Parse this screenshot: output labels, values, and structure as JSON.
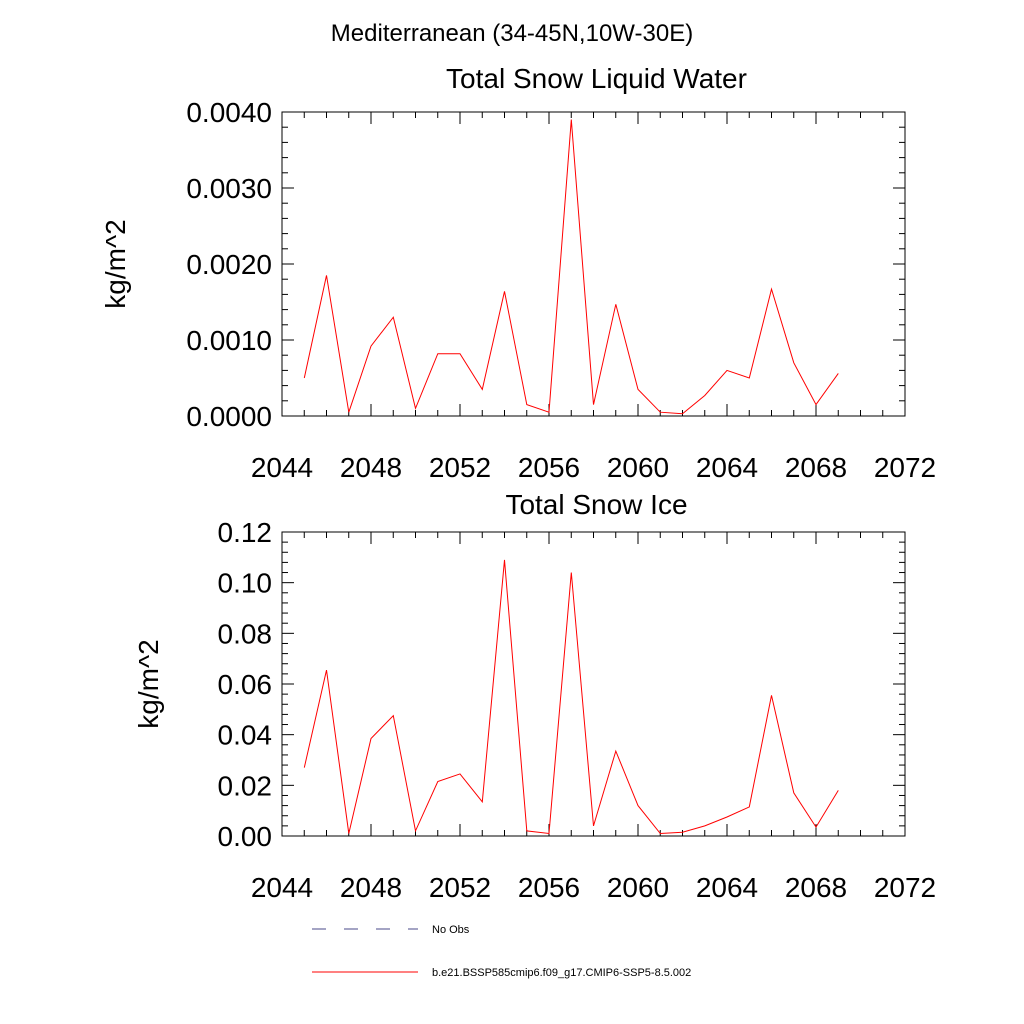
{
  "suptitle": "Mediterranean (34-45N,10W-30E)",
  "colors": {
    "model": "#ff0000",
    "obs": "#4a4a8a",
    "axis": "#000000"
  },
  "legend": [
    {
      "label": "No Obs",
      "style": "dashed",
      "color": "#4a4a8a"
    },
    {
      "label": "b.e21.BSSP585cmip6.f09_g17.CMIP6-SSP5-8.5.002",
      "style": "solid",
      "color": "#ff0000"
    }
  ],
  "chart_data": [
    {
      "type": "line",
      "title": "Total Snow Liquid Water",
      "ylabel": "kg/m^2",
      "xlabel": "",
      "xlim": [
        2044,
        2072
      ],
      "ylim": [
        0,
        0.004
      ],
      "xticks": [
        "2044",
        "2048",
        "2052",
        "2056",
        "2060",
        "2064",
        "2068",
        "2072"
      ],
      "yticks": [
        "0.0000",
        "0.0010",
        "0.0020",
        "0.0030",
        "0.0040"
      ],
      "series": [
        {
          "color": "#ff0000",
          "x": [
            2045,
            2046,
            2047,
            2048,
            2049,
            2050,
            2051,
            2052,
            2053,
            2054,
            2055,
            2056,
            2057,
            2058,
            2059,
            2060,
            2061,
            2062,
            2063,
            2064,
            2065,
            2066,
            2067,
            2068,
            2069
          ],
          "values": [
            0.0005,
            0.00185,
            5e-05,
            0.00092,
            0.0013,
            0.0001,
            0.00082,
            0.00082,
            0.00035,
            0.00164,
            0.00015,
            5e-05,
            0.0039,
            0.00015,
            0.00147,
            0.00035,
            5e-05,
            3e-05,
            0.00027,
            0.0006,
            0.0005,
            0.00167,
            0.0007,
            0.00015,
            0.00056
          ]
        }
      ]
    },
    {
      "type": "line",
      "title": "Total Snow Ice",
      "ylabel": "kg/m^2",
      "xlabel": "",
      "xlim": [
        2044,
        2072
      ],
      "ylim": [
        0,
        0.12
      ],
      "xticks": [
        "2044",
        "2048",
        "2052",
        "2056",
        "2060",
        "2064",
        "2068",
        "2072"
      ],
      "yticks": [
        "0.00",
        "0.02",
        "0.04",
        "0.06",
        "0.08",
        "0.10",
        "0.12"
      ],
      "series": [
        {
          "color": "#ff0000",
          "x": [
            2045,
            2046,
            2047,
            2048,
            2049,
            2050,
            2051,
            2052,
            2053,
            2054,
            2055,
            2056,
            2057,
            2058,
            2059,
            2060,
            2061,
            2062,
            2063,
            2064,
            2065,
            2066,
            2067,
            2068,
            2069
          ],
          "values": [
            0.027,
            0.0655,
            0.001,
            0.0385,
            0.0475,
            0.002,
            0.0215,
            0.0245,
            0.0135,
            0.109,
            0.002,
            0.001,
            0.104,
            0.004,
            0.0335,
            0.012,
            0.001,
            0.0015,
            0.004,
            0.0075,
            0.0115,
            0.0555,
            0.017,
            0.0035,
            0.018
          ]
        }
      ]
    }
  ]
}
